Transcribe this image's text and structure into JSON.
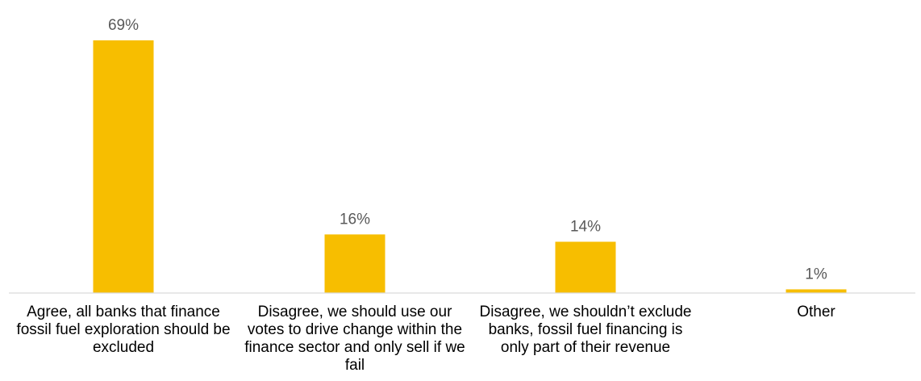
{
  "chart_data": {
    "type": "bar",
    "categories": [
      "Agree, all banks that finance fossil fuel exploration should be excluded",
      "Disagree, we should use our votes to drive change within the finance sector and only sell if we fail",
      "Disagree, we shouldn’t exclude banks, fossil fuel financing is only part of their revenue",
      "Other"
    ],
    "values": [
      69,
      16,
      14,
      1
    ],
    "data_labels": [
      "69%",
      "16%",
      "14%",
      "1%"
    ],
    "ylim": [
      0,
      69
    ],
    "grid": false,
    "legend": "none",
    "bar_color": "#F7BE00",
    "axis_color": "#D9D9D9",
    "label_color": "#595959"
  }
}
